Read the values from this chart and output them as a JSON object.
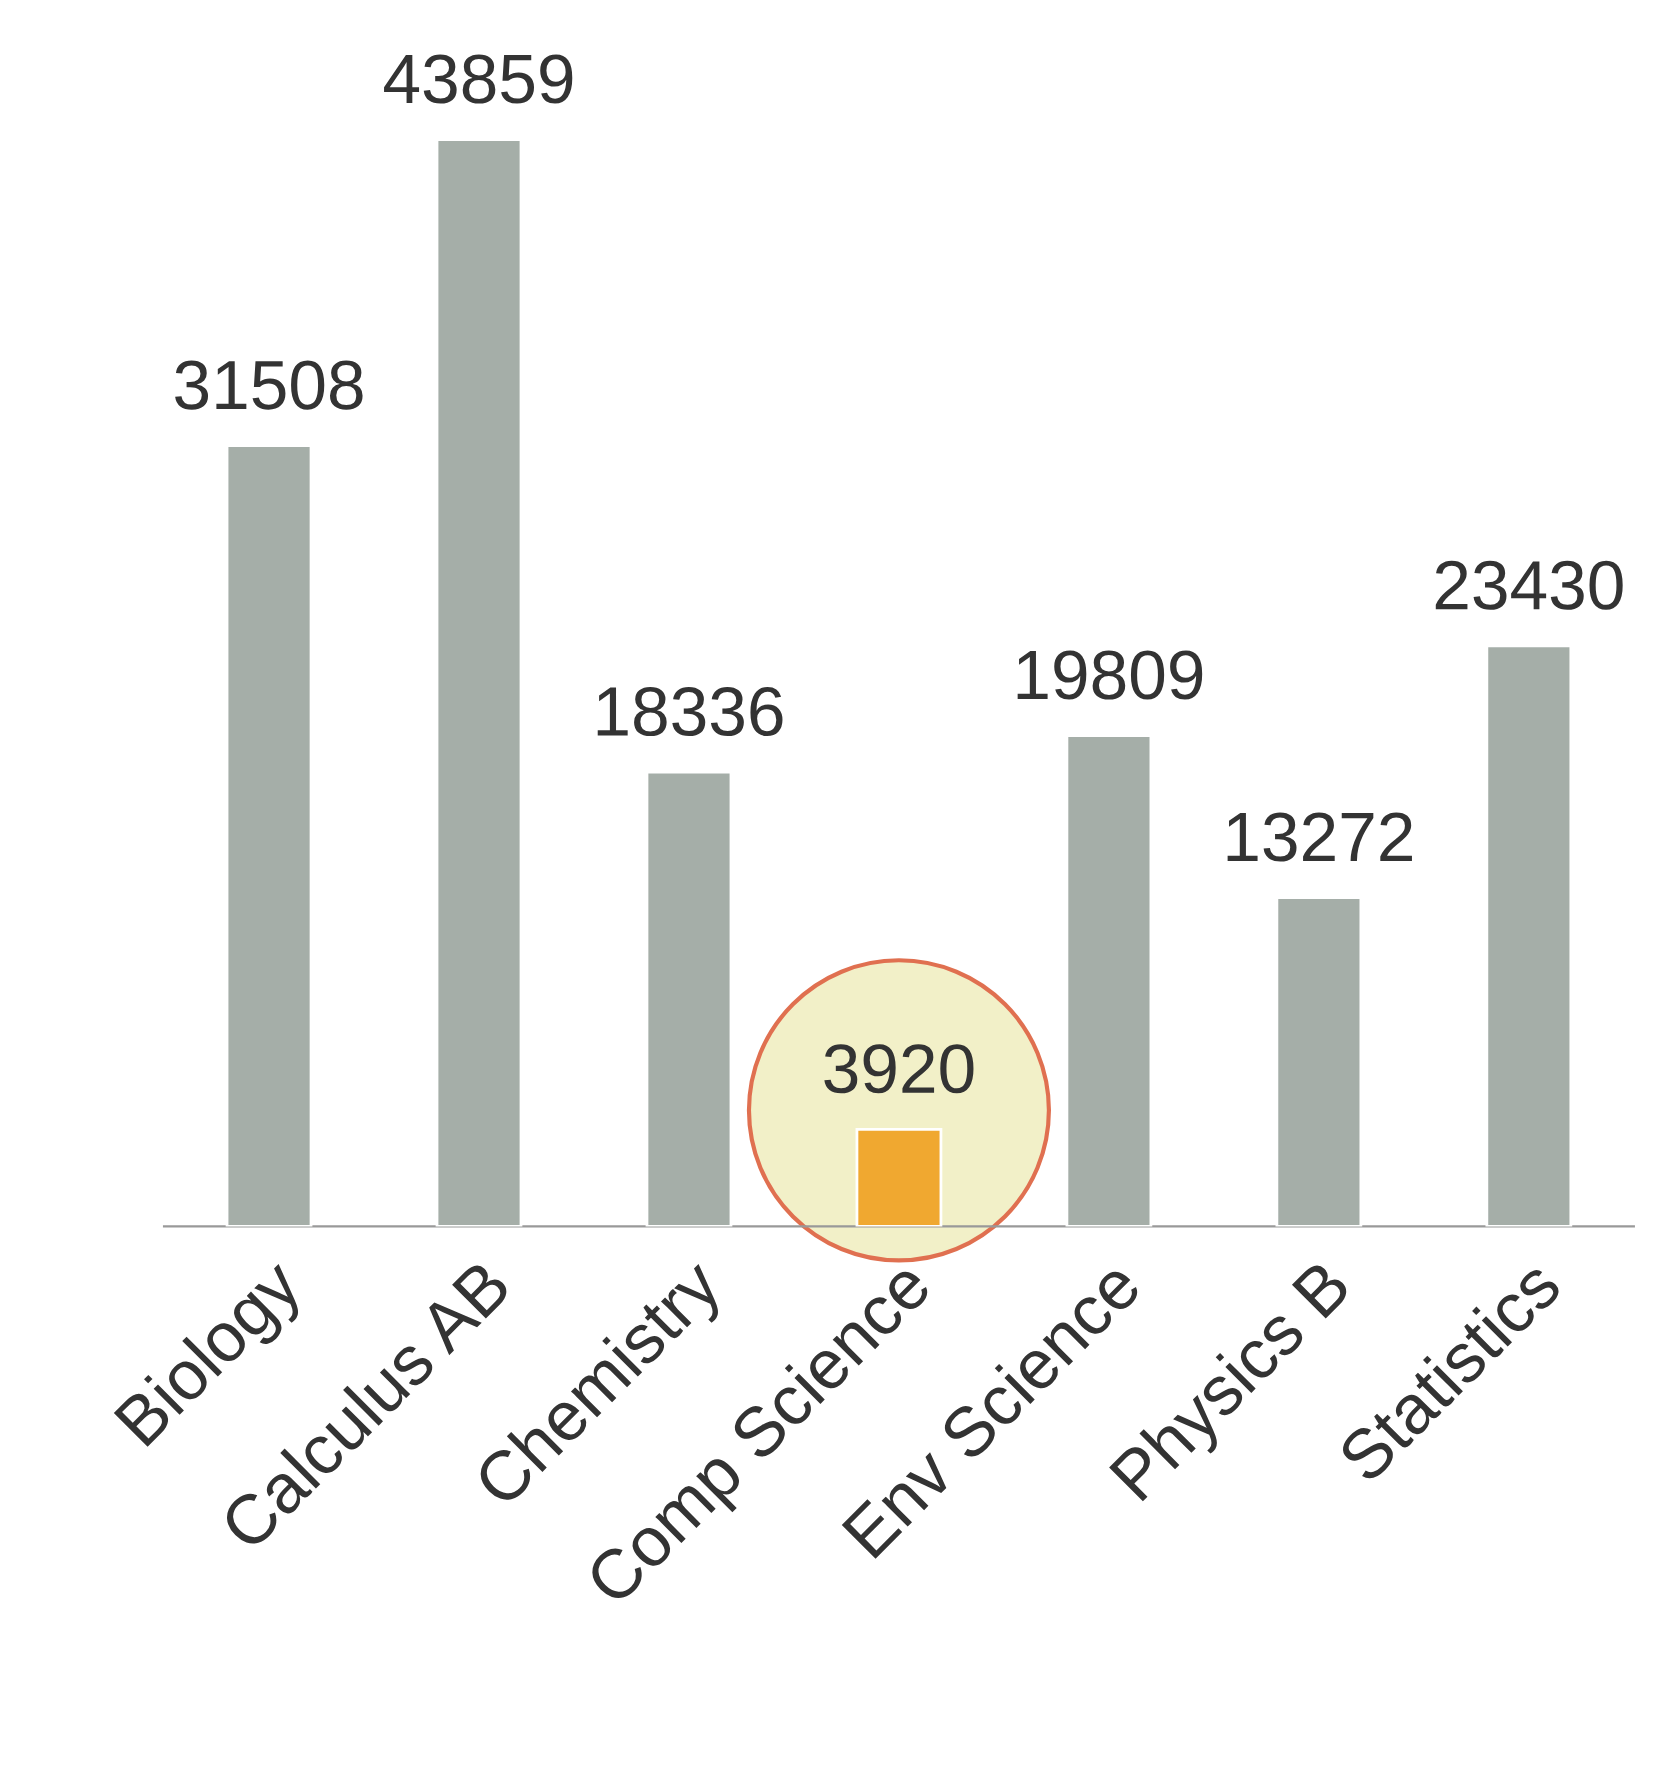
{
  "chart_data": {
    "type": "bar",
    "categories": [
      "Biology",
      "Calculus AB",
      "Chemistry",
      "Comp Science",
      "Env Science",
      "Physics B",
      "Statistics"
    ],
    "values": [
      31508,
      43859,
      18336,
      3920,
      19809,
      13272,
      23430
    ],
    "colors": [
      "#a5aea8",
      "#a5aea8",
      "#a5aea8",
      "#f0a830",
      "#a5aea8",
      "#a5aea8",
      "#a5aea8"
    ],
    "data_labels": true,
    "grid": false,
    "legend": false
  }
}
